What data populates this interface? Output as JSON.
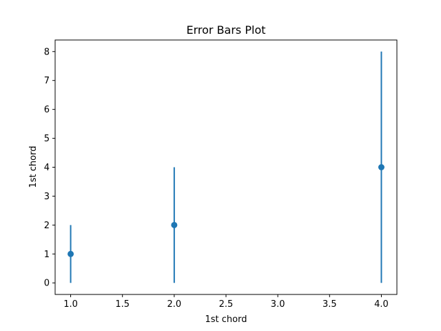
{
  "chart_data": {
    "type": "scatter",
    "title": "Error Bars Plot",
    "xlabel": "1st chord",
    "ylabel": "1st chord",
    "xlim": [
      0.85,
      4.15
    ],
    "ylim": [
      -0.4,
      8.4
    ],
    "xticks": [
      1.0,
      1.5,
      2.0,
      2.5,
      3.0,
      3.5,
      4.0
    ],
    "xtick_labels": [
      "1.0",
      "1.5",
      "2.0",
      "2.5",
      "3.0",
      "3.5",
      "4.0"
    ],
    "yticks": [
      0,
      1,
      2,
      3,
      4,
      5,
      6,
      7,
      8
    ],
    "ytick_labels": [
      "0",
      "1",
      "2",
      "3",
      "4",
      "5",
      "6",
      "7",
      "8"
    ],
    "grid": false,
    "color": "#1f77b4",
    "series": [
      {
        "x": [
          1,
          2,
          4
        ],
        "y": [
          1,
          2,
          4
        ],
        "yerr": [
          1,
          2,
          4
        ]
      }
    ]
  }
}
